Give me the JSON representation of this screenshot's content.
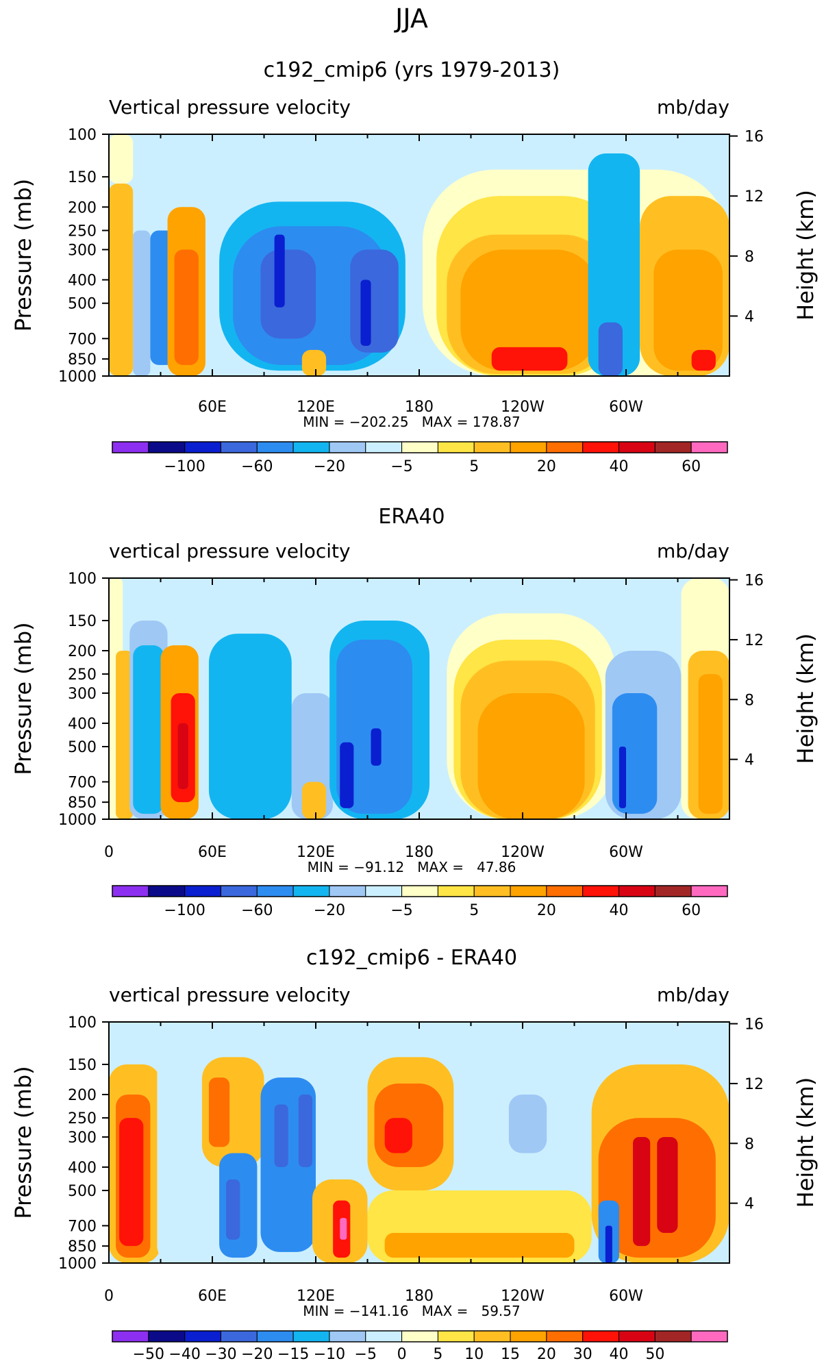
{
  "page_title": "JJA",
  "colors": {
    "cb_main": [
      "#8d2ff0",
      "#0b0b8a",
      "#0a1fcf",
      "#3b68dc",
      "#2d8cf0",
      "#13b5f0",
      "#9fc8f5",
      "#ccefff",
      "#ffffc8",
      "#ffe545",
      "#ffbf22",
      "#ffa300",
      "#ff6e00",
      "#ff1208",
      "#d80414",
      "#a32626",
      "#ff6ac0"
    ],
    "cb_diff": [
      "#8d2ff0",
      "#0b0b8a",
      "#0a1fcf",
      "#3b68dc",
      "#2d8cf0",
      "#13b5f0",
      "#9fc8f5",
      "#ccefff",
      "#ffffc8",
      "#ffe545",
      "#ffbf22",
      "#ffa300",
      "#ff6e00",
      "#ff1208",
      "#d80414",
      "#a32626",
      "#ff6ac0"
    ]
  },
  "chart_data": [
    {
      "type": "heatmap",
      "title": "c192_cmip6 (yrs 1979-2013)",
      "left_label": "Vertical pressure velocity",
      "right_label": "mb/day",
      "ylabel": "Pressure (mb)",
      "ylabel_right": "Height (km)",
      "pressure_ticks": [
        "100",
        "150",
        "200",
        "250",
        "300",
        "400",
        "500",
        "700",
        "850",
        "1000"
      ],
      "pressure_values": [
        100,
        150,
        200,
        250,
        300,
        400,
        500,
        700,
        850,
        1000
      ],
      "height_ticks": [
        "16",
        "12",
        "8",
        "4"
      ],
      "height_values": [
        16,
        12,
        8,
        4
      ],
      "lon_ticks": [
        "60E",
        "120E",
        "180",
        "120W",
        "60W"
      ],
      "lon_values": [
        60,
        120,
        180,
        240,
        300
      ],
      "xlim": [
        0,
        360
      ],
      "minmax": "MIN = −202.25   MAX = 178.87",
      "colorbar_labels": [
        "−100",
        "−60",
        "−20",
        "−5",
        "5",
        "20",
        "40",
        "60"
      ],
      "colorbar_label_bounds": [
        2,
        4,
        6,
        8,
        10,
        12,
        14,
        16
      ],
      "cells": [
        {
          "lon": [
            0,
            14
          ],
          "p": [
            100,
            160
          ],
          "level": 8
        },
        {
          "lon": [
            0,
            14
          ],
          "p": [
            160,
            1000
          ],
          "level": 10
        },
        {
          "lon": [
            14,
            24
          ],
          "p": [
            250,
            1000
          ],
          "level": 6
        },
        {
          "lon": [
            24,
            38
          ],
          "p": [
            250,
            900
          ],
          "level": 4
        },
        {
          "lon": [
            34,
            56
          ],
          "p": [
            200,
            1000
          ],
          "level": 11
        },
        {
          "lon": [
            38,
            52
          ],
          "p": [
            300,
            900
          ],
          "level": 12
        },
        {
          "lon": [
            60,
            180
          ],
          "p": [
            170,
            1000
          ],
          "level": 7
        },
        {
          "lon": [
            64,
            172
          ],
          "p": [
            190,
            950
          ],
          "level": 5
        },
        {
          "lon": [
            72,
            162
          ],
          "p": [
            240,
            900
          ],
          "level": 4
        },
        {
          "lon": [
            88,
            120
          ],
          "p": [
            300,
            700
          ],
          "level": 3
        },
        {
          "lon": [
            96,
            102
          ],
          "p": [
            260,
            520
          ],
          "level": 2
        },
        {
          "lon": [
            140,
            168
          ],
          "p": [
            300,
            800
          ],
          "level": 3
        },
        {
          "lon": [
            146,
            152
          ],
          "p": [
            400,
            750
          ],
          "level": 2
        },
        {
          "lon": [
            182,
            360
          ],
          "p": [
            140,
            1000
          ],
          "level": 8
        },
        {
          "lon": [
            190,
            300
          ],
          "p": [
            180,
            1000
          ],
          "level": 9
        },
        {
          "lon": [
            196,
            292
          ],
          "p": [
            260,
            980
          ],
          "level": 10
        },
        {
          "lon": [
            204,
            284
          ],
          "p": [
            300,
            950
          ],
          "level": 11
        },
        {
          "lon": [
            222,
            266
          ],
          "p": [
            760,
            950
          ],
          "level": 13
        },
        {
          "lon": [
            278,
            308
          ],
          "p": [
            120,
            1000
          ],
          "level": 5
        },
        {
          "lon": [
            284,
            298
          ],
          "p": [
            600,
            1000
          ],
          "level": 3
        },
        {
          "lon": [
            308,
            360
          ],
          "p": [
            180,
            1000
          ],
          "level": 10
        },
        {
          "lon": [
            316,
            356
          ],
          "p": [
            300,
            950
          ],
          "level": 11
        },
        {
          "lon": [
            338,
            352
          ],
          "p": [
            780,
            950
          ],
          "level": 13
        },
        {
          "lon": [
            112,
            126
          ],
          "p": [
            780,
            1000
          ],
          "level": 10
        }
      ]
    },
    {
      "type": "heatmap",
      "title": "ERA40",
      "left_label": "vertical pressure velocity",
      "right_label": "mb/day",
      "ylabel": "Pressure (mb)",
      "ylabel_right": "Height (km)",
      "pressure_ticks": [
        "100",
        "150",
        "200",
        "250",
        "300",
        "400",
        "500",
        "700",
        "850",
        "1000"
      ],
      "pressure_values": [
        100,
        150,
        200,
        250,
        300,
        400,
        500,
        700,
        850,
        1000
      ],
      "height_ticks": [
        "16",
        "12",
        "8",
        "4"
      ],
      "height_values": [
        16,
        12,
        8,
        4
      ],
      "lon_ticks": [
        "0",
        "60E",
        "120E",
        "180",
        "120W",
        "60W"
      ],
      "lon_values": [
        0,
        60,
        120,
        180,
        240,
        300
      ],
      "xlim": [
        0,
        360
      ],
      "minmax": "MIN = −91.12   MAX =   47.86",
      "colorbar_labels": [
        "−100",
        "−60",
        "−20",
        "−5",
        "5",
        "20",
        "40",
        "60"
      ],
      "colorbar_label_bounds": [
        2,
        4,
        6,
        8,
        10,
        12,
        14,
        16
      ],
      "cells": [
        {
          "lon": [
            0,
            8
          ],
          "p": [
            100,
            1000
          ],
          "level": 8
        },
        {
          "lon": [
            4,
            14
          ],
          "p": [
            200,
            1000
          ],
          "level": 10
        },
        {
          "lon": [
            12,
            34
          ],
          "p": [
            150,
            1000
          ],
          "level": 6
        },
        {
          "lon": [
            14,
            32
          ],
          "p": [
            190,
            950
          ],
          "level": 5
        },
        {
          "lon": [
            30,
            52
          ],
          "p": [
            190,
            1000
          ],
          "level": 11
        },
        {
          "lon": [
            36,
            50
          ],
          "p": [
            300,
            850
          ],
          "level": 13
        },
        {
          "lon": [
            40,
            46
          ],
          "p": [
            400,
            750
          ],
          "level": 14
        },
        {
          "lon": [
            56,
            190
          ],
          "p": [
            150,
            1000
          ],
          "level": 7
        },
        {
          "lon": [
            58,
            106
          ],
          "p": [
            170,
            1000
          ],
          "level": 5
        },
        {
          "lon": [
            106,
            130
          ],
          "p": [
            300,
            1000
          ],
          "level": 6
        },
        {
          "lon": [
            112,
            126
          ],
          "p": [
            700,
            1000
          ],
          "level": 10
        },
        {
          "lon": [
            128,
            186
          ],
          "p": [
            150,
            1000
          ],
          "level": 5
        },
        {
          "lon": [
            132,
            176
          ],
          "p": [
            180,
            950
          ],
          "level": 4
        },
        {
          "lon": [
            134,
            142
          ],
          "p": [
            480,
            900
          ],
          "level": 2
        },
        {
          "lon": [
            152,
            158
          ],
          "p": [
            420,
            600
          ],
          "level": 2
        },
        {
          "lon": [
            196,
            294
          ],
          "p": [
            140,
            1000
          ],
          "level": 8
        },
        {
          "lon": [
            200,
            286
          ],
          "p": [
            180,
            1000
          ],
          "level": 9
        },
        {
          "lon": [
            204,
            282
          ],
          "p": [
            220,
            1000
          ],
          "level": 10
        },
        {
          "lon": [
            214,
            276
          ],
          "p": [
            300,
            1000
          ],
          "level": 11
        },
        {
          "lon": [
            288,
            332
          ],
          "p": [
            200,
            1000
          ],
          "level": 6
        },
        {
          "lon": [
            292,
            318
          ],
          "p": [
            300,
            950
          ],
          "level": 4
        },
        {
          "lon": [
            296,
            300
          ],
          "p": [
            500,
            900
          ],
          "level": 2
        },
        {
          "lon": [
            332,
            360
          ],
          "p": [
            100,
            1000
          ],
          "level": 8
        },
        {
          "lon": [
            336,
            360
          ],
          "p": [
            200,
            1000
          ],
          "level": 10
        },
        {
          "lon": [
            342,
            356
          ],
          "p": [
            250,
            950
          ],
          "level": 11
        }
      ]
    },
    {
      "type": "heatmap",
      "title": "c192_cmip6 - ERA40",
      "left_label": "vertical pressure velocity",
      "right_label": "mb/day",
      "ylabel": "Pressure (mb)",
      "ylabel_right": "Height (km)",
      "pressure_ticks": [
        "100",
        "150",
        "200",
        "250",
        "300",
        "400",
        "500",
        "700",
        "850",
        "1000"
      ],
      "pressure_values": [
        100,
        150,
        200,
        250,
        300,
        400,
        500,
        700,
        850,
        1000
      ],
      "height_ticks": [
        "16",
        "12",
        "8",
        "4"
      ],
      "height_values": [
        16,
        12,
        8,
        4
      ],
      "lon_ticks": [
        "0",
        "60E",
        "120E",
        "180",
        "120W",
        "60W"
      ],
      "lon_values": [
        0,
        60,
        120,
        180,
        240,
        300
      ],
      "xlim": [
        0,
        360
      ],
      "minmax": "MIN = −141.16   MAX =   59.57",
      "colorbar_labels": [
        "−50",
        "−40",
        "−30",
        "−20",
        "−15",
        "−10",
        "−5",
        "0",
        "5",
        "10",
        "15",
        "20",
        "30",
        "40",
        "50"
      ],
      "colorbar_label_bounds": [
        1,
        2,
        3,
        4,
        5,
        6,
        7,
        8,
        9,
        10,
        11,
        12,
        13,
        14,
        15
      ],
      "cells": [
        {
          "lon": [
            0,
            30
          ],
          "p": [
            150,
            1000
          ],
          "level": 10
        },
        {
          "lon": [
            4,
            24
          ],
          "p": [
            200,
            950
          ],
          "level": 12
        },
        {
          "lon": [
            6,
            20
          ],
          "p": [
            250,
            850
          ],
          "level": 13
        },
        {
          "lon": [
            28,
            56
          ],
          "p": [
            120,
            1000
          ],
          "level": 7
        },
        {
          "lon": [
            54,
            96
          ],
          "p": [
            120,
            1000
          ],
          "level": 7
        },
        {
          "lon": [
            54,
            90
          ],
          "p": [
            140,
            400
          ],
          "level": 10
        },
        {
          "lon": [
            58,
            70
          ],
          "p": [
            170,
            330
          ],
          "level": 12
        },
        {
          "lon": [
            64,
            86
          ],
          "p": [
            350,
            950
          ],
          "level": 4
        },
        {
          "lon": [
            68,
            76
          ],
          "p": [
            450,
            800
          ],
          "level": 3
        },
        {
          "lon": [
            88,
            120
          ],
          "p": [
            170,
            900
          ],
          "level": 4
        },
        {
          "lon": [
            96,
            104
          ],
          "p": [
            220,
            400
          ],
          "level": 3
        },
        {
          "lon": [
            110,
            118
          ],
          "p": [
            200,
            400
          ],
          "level": 3
        },
        {
          "lon": [
            118,
            150
          ],
          "p": [
            450,
            1000
          ],
          "level": 10
        },
        {
          "lon": [
            130,
            140
          ],
          "p": [
            550,
            950
          ],
          "level": 13
        },
        {
          "lon": [
            134,
            138
          ],
          "p": [
            650,
            800
          ],
          "level": 16
        },
        {
          "lon": [
            150,
            200
          ],
          "p": [
            140,
            500
          ],
          "level": 10
        },
        {
          "lon": [
            154,
            194
          ],
          "p": [
            180,
            400
          ],
          "level": 12
        },
        {
          "lon": [
            160,
            176
          ],
          "p": [
            250,
            350
          ],
          "level": 13
        },
        {
          "lon": [
            150,
            280
          ],
          "p": [
            500,
            1000
          ],
          "level": 9
        },
        {
          "lon": [
            160,
            270
          ],
          "p": [
            750,
            950
          ],
          "level": 11
        },
        {
          "lon": [
            232,
            254
          ],
          "p": [
            200,
            350
          ],
          "level": 6
        },
        {
          "lon": [
            280,
            360
          ],
          "p": [
            150,
            1000
          ],
          "level": 10
        },
        {
          "lon": [
            284,
            352
          ],
          "p": [
            250,
            950
          ],
          "level": 12
        },
        {
          "lon": [
            304,
            314
          ],
          "p": [
            300,
            850
          ],
          "level": 14
        },
        {
          "lon": [
            318,
            330
          ],
          "p": [
            300,
            750
          ],
          "level": 14
        },
        {
          "lon": [
            284,
            296
          ],
          "p": [
            550,
            1000
          ],
          "level": 4
        },
        {
          "lon": [
            288,
            292
          ],
          "p": [
            700,
            1000
          ],
          "level": 2
        }
      ]
    }
  ]
}
